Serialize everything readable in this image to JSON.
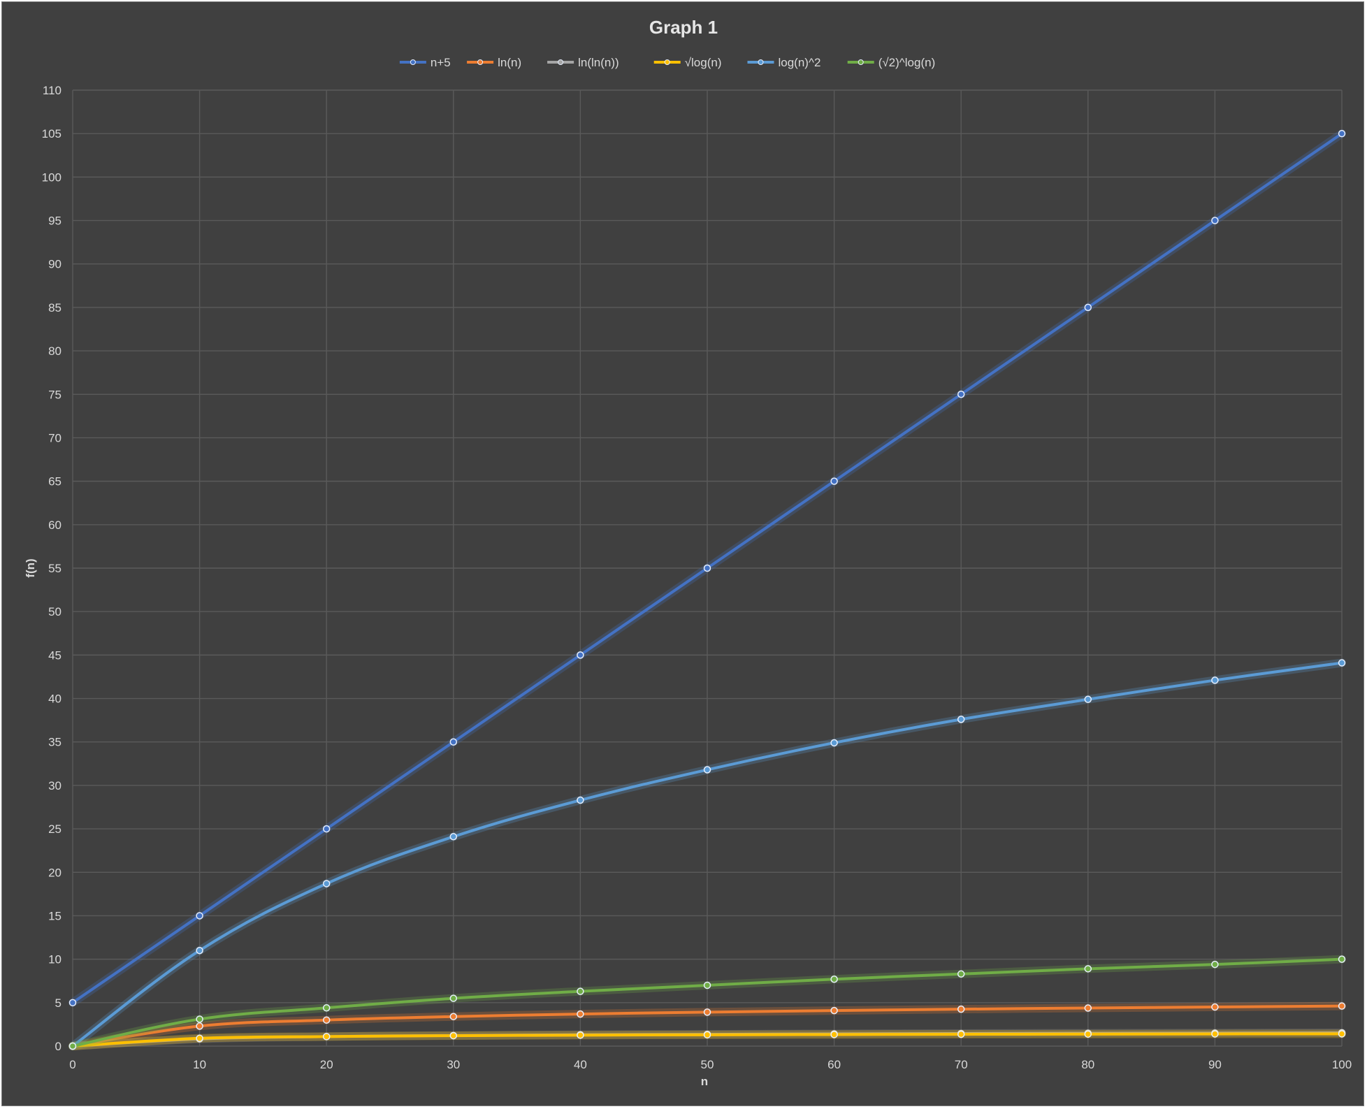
{
  "chart_data": {
    "type": "line",
    "title": "Graph 1",
    "xlabel": "n",
    "ylabel": "f(n)",
    "x": [
      0,
      10,
      20,
      30,
      40,
      50,
      60,
      70,
      80,
      90,
      100
    ],
    "xlim": [
      0,
      100
    ],
    "ylim": [
      0,
      110
    ],
    "xticks": [
      "0",
      "10",
      "20",
      "30",
      "40",
      "50",
      "60",
      "70",
      "80",
      "90",
      "100"
    ],
    "yticks": [
      "0",
      "5",
      "10",
      "15",
      "20",
      "25",
      "30",
      "35",
      "40",
      "45",
      "50",
      "55",
      "60",
      "65",
      "70",
      "75",
      "80",
      "85",
      "90",
      "95",
      "100",
      "105",
      "110"
    ],
    "grid": true,
    "legend_position": "top",
    "smooth": true,
    "series": [
      {
        "name": "n+5",
        "color": "#4472c4",
        "values": [
          5,
          15,
          25,
          35,
          45,
          55,
          65,
          75,
          85,
          95,
          105
        ]
      },
      {
        "name": "ln(n)",
        "color": "#ed7d31",
        "values": [
          0,
          2.3,
          3.0,
          3.4,
          3.69,
          3.91,
          4.09,
          4.25,
          4.38,
          4.5,
          4.61
        ]
      },
      {
        "name": "ln(ln(n))",
        "color": "#a5a5a5",
        "values": [
          0,
          0.83,
          1.1,
          1.22,
          1.31,
          1.36,
          1.41,
          1.45,
          1.48,
          1.5,
          1.53
        ]
      },
      {
        "name": "√log(n)",
        "color": "#ffc000",
        "values": [
          0,
          0.9,
          1.1,
          1.2,
          1.26,
          1.3,
          1.33,
          1.36,
          1.38,
          1.4,
          1.41
        ]
      },
      {
        "name": "log(n)^2",
        "color": "#5b9bd5",
        "values": [
          0,
          11.0,
          18.7,
          24.1,
          28.3,
          31.8,
          34.9,
          37.6,
          39.9,
          42.1,
          44.1
        ]
      },
      {
        "name": "(√2)^log(n)",
        "color": "#70ad47",
        "values": [
          0,
          3.1,
          4.4,
          5.5,
          6.3,
          7.0,
          7.7,
          8.3,
          8.9,
          9.4,
          10.0
        ]
      }
    ]
  }
}
